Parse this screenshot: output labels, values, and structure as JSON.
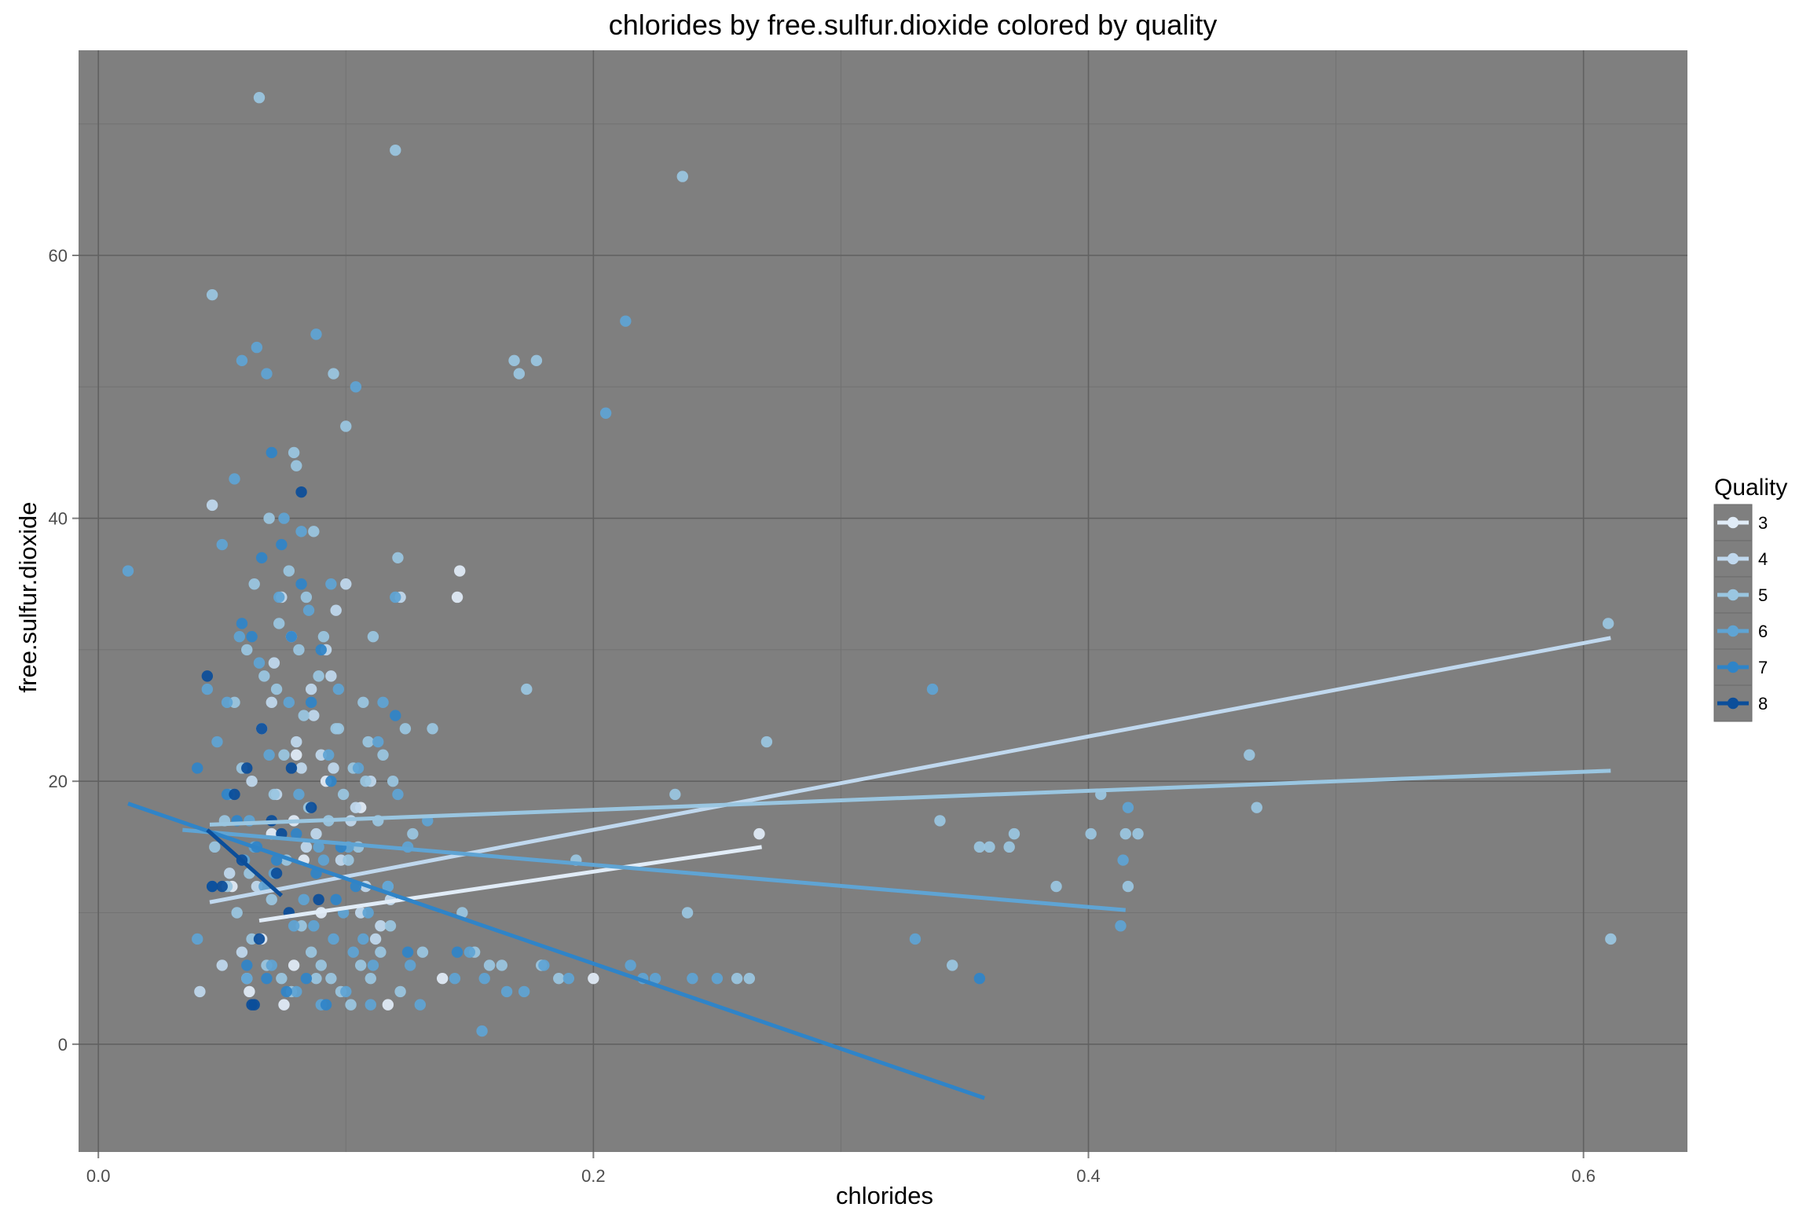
{
  "chart_data": {
    "type": "scatter",
    "title": "chlorides by free.sulfur.dioxide colored by quality",
    "xlabel": "chlorides",
    "ylabel": "free.sulfur.dioxide",
    "xlim": [
      -0.008,
      0.642
    ],
    "ylim": [
      -8.2,
      75.6
    ],
    "xticks": [
      0.0,
      0.2,
      0.4,
      0.6
    ],
    "xtick_labels": [
      "0.0",
      "0.2",
      "0.4",
      "0.6"
    ],
    "yticks": [
      0,
      20,
      40,
      60
    ],
    "ytick_labels": [
      "0",
      "20",
      "40",
      "60"
    ],
    "grid": true,
    "panel_background": "#7f7f7f",
    "legend": {
      "title": "Quality",
      "position": "right",
      "entries": [
        {
          "label": "3",
          "color": "#e1ecf7"
        },
        {
          "label": "4",
          "color": "#c0d8ee"
        },
        {
          "label": "5",
          "color": "#9ac6e1"
        },
        {
          "label": "6",
          "color": "#5fa4d4"
        },
        {
          "label": "7",
          "color": "#2f84c8"
        },
        {
          "label": "8",
          "color": "#0b4e9a"
        }
      ]
    },
    "trend_lines": [
      {
        "quality": "3",
        "x": [
          0.065,
          0.268
        ],
        "y": [
          9.4,
          15.0
        ]
      },
      {
        "quality": "4",
        "x": [
          0.045,
          0.611
        ],
        "y": [
          10.8,
          30.9
        ]
      },
      {
        "quality": "5",
        "x": [
          0.045,
          0.611
        ],
        "y": [
          16.7,
          20.8
        ]
      },
      {
        "quality": "6",
        "x": [
          0.034,
          0.415
        ],
        "y": [
          16.3,
          10.2
        ]
      },
      {
        "quality": "7",
        "x": [
          0.012,
          0.358
        ],
        "y": [
          18.3,
          -4.1
        ]
      },
      {
        "quality": "8",
        "x": [
          0.044,
          0.074
        ],
        "y": [
          16.3,
          11.3
        ]
      }
    ],
    "points": [
      {
        "quality": "3",
        "x": [
          0.075,
          0.079,
          0.066,
          0.145,
          0.146,
          0.267,
          0.2,
          0.139,
          0.083,
          0.054,
          0.092,
          0.106,
          0.079,
          0.09,
          0.117,
          0.061,
          0.07,
          0.08
        ],
        "y": [
          3,
          6,
          8,
          34,
          36,
          16,
          5,
          5,
          14,
          12,
          20,
          18,
          17,
          10,
          3,
          4,
          16,
          22
        ]
      },
      {
        "quality": "4",
        "x": [
          0.046,
          0.053,
          0.062,
          0.07,
          0.078,
          0.084,
          0.09,
          0.096,
          0.102,
          0.108,
          0.114,
          0.058,
          0.066,
          0.074,
          0.082,
          0.088,
          0.094,
          0.1,
          0.106,
          0.112,
          0.118,
          0.041,
          0.05,
          0.06,
          0.072,
          0.08,
          0.086,
          0.092,
          0.098,
          0.104,
          0.122,
          0.071,
          0.064,
          0.087,
          0.095,
          0.11
        ],
        "y": [
          41,
          13,
          20,
          26,
          31,
          15,
          22,
          33,
          17,
          12,
          9,
          7,
          24,
          34,
          21,
          16,
          28,
          35,
          10,
          8,
          11,
          4,
          6,
          5,
          19,
          23,
          27,
          30,
          14,
          18,
          34,
          29,
          12,
          25,
          21,
          20
        ]
      },
      {
        "quality": "5",
        "x": [
          0.046,
          0.065,
          0.08,
          0.095,
          0.1,
          0.12,
          0.168,
          0.17,
          0.177,
          0.236,
          0.27,
          0.34,
          0.36,
          0.37,
          0.387,
          0.401,
          0.405,
          0.415,
          0.42,
          0.416,
          0.465,
          0.468,
          0.61,
          0.611,
          0.051,
          0.055,
          0.058,
          0.061,
          0.063,
          0.067,
          0.069,
          0.071,
          0.073,
          0.075,
          0.077,
          0.079,
          0.081,
          0.083,
          0.085,
          0.087,
          0.089,
          0.091,
          0.093,
          0.097,
          0.099,
          0.101,
          0.103,
          0.105,
          0.107,
          0.109,
          0.111,
          0.113,
          0.115,
          0.117,
          0.119,
          0.121,
          0.124,
          0.127,
          0.131,
          0.135,
          0.147,
          0.152,
          0.158,
          0.163,
          0.173,
          0.179,
          0.186,
          0.193,
          0.233,
          0.238,
          0.258,
          0.263,
          0.345,
          0.356,
          0.368,
          0.047,
          0.052,
          0.056,
          0.062,
          0.068,
          0.074,
          0.078,
          0.082,
          0.086,
          0.09,
          0.094,
          0.098,
          0.102,
          0.106,
          0.11,
          0.114,
          0.118,
          0.122,
          0.06,
          0.072,
          0.084,
          0.096,
          0.108,
          0.07,
          0.076,
          0.088
        ],
        "y": [
          57,
          72,
          44,
          51,
          47,
          68,
          52,
          51,
          52,
          66,
          23,
          17,
          15,
          16,
          12,
          16,
          19,
          16,
          16,
          12,
          22,
          18,
          32,
          8,
          17,
          26,
          21,
          13,
          35,
          28,
          40,
          19,
          32,
          22,
          36,
          45,
          30,
          25,
          18,
          39,
          28,
          31,
          17,
          24,
          19,
          14,
          21,
          15,
          26,
          23,
          31,
          17,
          22,
          12,
          20,
          37,
          24,
          16,
          7,
          24,
          10,
          7,
          6,
          6,
          27,
          6,
          5,
          14,
          19,
          10,
          5,
          5,
          6,
          15,
          15,
          15,
          12,
          10,
          8,
          6,
          5,
          4,
          9,
          7,
          6,
          5,
          4,
          3,
          6,
          5,
          7,
          9,
          4,
          30,
          27,
          34,
          24,
          20,
          11,
          14,
          5
        ]
      },
      {
        "quality": "6",
        "x": [
          0.012,
          0.04,
          0.05,
          0.055,
          0.058,
          0.064,
          0.068,
          0.075,
          0.082,
          0.088,
          0.094,
          0.104,
          0.115,
          0.12,
          0.125,
          0.13,
          0.15,
          0.155,
          0.165,
          0.18,
          0.19,
          0.205,
          0.213,
          0.215,
          0.22,
          0.225,
          0.24,
          0.25,
          0.33,
          0.337,
          0.413,
          0.414,
          0.416,
          0.052,
          0.057,
          0.061,
          0.065,
          0.069,
          0.073,
          0.077,
          0.081,
          0.085,
          0.089,
          0.093,
          0.097,
          0.101,
          0.105,
          0.109,
          0.113,
          0.117,
          0.121,
          0.126,
          0.133,
          0.144,
          0.156,
          0.172,
          0.044,
          0.048,
          0.053,
          0.059,
          0.063,
          0.067,
          0.071,
          0.079,
          0.083,
          0.087,
          0.091,
          0.095,
          0.099,
          0.103,
          0.107,
          0.111,
          0.06,
          0.07,
          0.08,
          0.09,
          0.1,
          0.11
        ],
        "y": [
          36,
          8,
          38,
          43,
          52,
          53,
          51,
          40,
          39,
          54,
          35,
          50,
          26,
          34,
          15,
          3,
          7,
          1,
          4,
          6,
          5,
          48,
          55,
          6,
          5,
          5,
          5,
          5,
          8,
          27,
          9,
          14,
          18,
          26,
          31,
          17,
          29,
          22,
          34,
          26,
          19,
          33,
          15,
          22,
          27,
          15,
          21,
          10,
          23,
          12,
          19,
          6,
          17,
          5,
          5,
          4,
          27,
          23,
          19,
          14,
          15,
          12,
          13,
          9,
          11,
          9,
          14,
          8,
          10,
          7,
          8,
          6,
          5,
          6,
          4,
          3,
          4,
          3
        ]
      },
      {
        "quality": "7",
        "x": [
          0.04,
          0.046,
          0.052,
          0.058,
          0.062,
          0.066,
          0.07,
          0.074,
          0.078,
          0.082,
          0.086,
          0.09,
          0.094,
          0.098,
          0.12,
          0.125,
          0.145,
          0.356,
          0.056,
          0.064,
          0.072,
          0.08,
          0.088,
          0.096,
          0.104,
          0.06,
          0.068,
          0.076,
          0.084,
          0.092
        ],
        "y": [
          21,
          12,
          19,
          32,
          31,
          37,
          45,
          38,
          31,
          35,
          26,
          30,
          20,
          15,
          25,
          7,
          7,
          5,
          17,
          15,
          14,
          16,
          13,
          11,
          12,
          6,
          5,
          4,
          5,
          3
        ]
      },
      {
        "quality": "8",
        "x": [
          0.044,
          0.05,
          0.055,
          0.06,
          0.063,
          0.066,
          0.07,
          0.074,
          0.078,
          0.082,
          0.086,
          0.089,
          0.046,
          0.058,
          0.072,
          0.065,
          0.077,
          0.062
        ],
        "y": [
          28,
          12,
          19,
          21,
          3,
          24,
          17,
          16,
          21,
          42,
          18,
          11,
          12,
          14,
          13,
          8,
          10,
          3
        ]
      }
    ]
  }
}
